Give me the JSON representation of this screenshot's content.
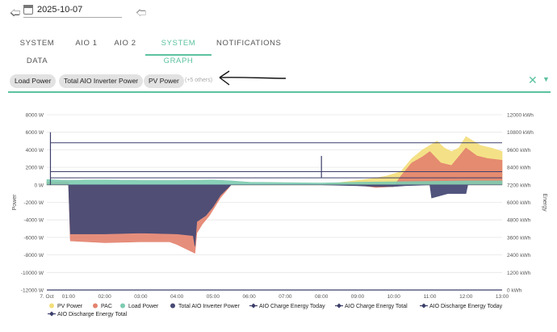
{
  "header": {
    "back_icon": "arrow-left-icon",
    "calendar_icon": "calendar-icon",
    "date": "2025-10-07",
    "forward_icon": "arrow-right-icon"
  },
  "tabs": [
    {
      "label": "SYSTEM DATA",
      "active": false
    },
    {
      "label": "AIO 1",
      "active": false
    },
    {
      "label": "AIO 2",
      "active": false
    },
    {
      "label": "SYSTEM GRAPH",
      "active": true
    },
    {
      "label": "NOTIFICATIONS",
      "active": false
    }
  ],
  "selector": {
    "chips": [
      "Load Power",
      "Total AIO Inverter Power",
      "PV Power"
    ],
    "others_text": "(+5 others)",
    "clear_icon": "close-icon",
    "dropdown_icon": "caret-down-icon",
    "accent_color": "#5cc2a0"
  },
  "chart_data": {
    "type": "area",
    "title": "",
    "ylabel": "Power",
    "y2label": "Energy",
    "ylim": [
      -12000,
      8000
    ],
    "y2lim": [
      0,
      12000
    ],
    "y_ticks": [
      "8000 W",
      "6000 W",
      "4000 W",
      "2000 W",
      "0 W",
      "-2000 W",
      "-4000 W",
      "-6000 W",
      "-8000 W",
      "-10000 W",
      "-12000 W"
    ],
    "y2_ticks": [
      "12000 kWh",
      "10800 kWh",
      "9600 kWh",
      "8400 kWh",
      "7200 kWh",
      "6000 kWh",
      "4800 kWh",
      "3600 kWh",
      "2400 kWh",
      "1200 kWh",
      "0 kWh"
    ],
    "xlim_hours": [
      0.4,
      13
    ],
    "x_ticks": [
      {
        "hour": 0.4,
        "label": "7. Oct"
      },
      {
        "hour": 1,
        "label": "01:00"
      },
      {
        "hour": 2,
        "label": "02:00"
      },
      {
        "hour": 3,
        "label": "03:00"
      },
      {
        "hour": 4,
        "label": "04:00"
      },
      {
        "hour": 5,
        "label": "05:00"
      },
      {
        "hour": 6,
        "label": "06:00"
      },
      {
        "hour": 7,
        "label": "07:00"
      },
      {
        "hour": 8,
        "label": "08:00"
      },
      {
        "hour": 9,
        "label": "09:00"
      },
      {
        "hour": 10,
        "label": "10:00"
      },
      {
        "hour": 11,
        "label": "11:00"
      },
      {
        "hour": 12,
        "label": "12:00"
      },
      {
        "hour": 13,
        "label": "13:00"
      }
    ],
    "series": [
      {
        "name": "PV Power",
        "kind": "area",
        "color": "#f3de7a",
        "points": [
          [
            0.4,
            0
          ],
          [
            6,
            0
          ],
          [
            8,
            0
          ],
          [
            8.3,
            150
          ],
          [
            8.6,
            300
          ],
          [
            9,
            500
          ],
          [
            9.4,
            700
          ],
          [
            9.8,
            1000
          ],
          [
            10.2,
            1500
          ],
          [
            10.5,
            3000
          ],
          [
            10.8,
            4000
          ],
          [
            11,
            4500
          ],
          [
            11.2,
            5000
          ],
          [
            11.4,
            4200
          ],
          [
            11.6,
            3800
          ],
          [
            11.8,
            4200
          ],
          [
            12,
            5500
          ],
          [
            12.2,
            5000
          ],
          [
            12.4,
            4500
          ],
          [
            12.7,
            4200
          ],
          [
            13,
            3800
          ]
        ]
      },
      {
        "name": "PAC",
        "kind": "area",
        "color": "#e3826e",
        "points": [
          [
            0.4,
            300
          ],
          [
            1,
            300
          ],
          [
            1.05,
            -6400
          ],
          [
            2,
            -6600
          ],
          [
            3,
            -6500
          ],
          [
            3.8,
            -6500
          ],
          [
            4,
            -6800
          ],
          [
            4.5,
            -7800
          ],
          [
            4.55,
            -5500
          ],
          [
            4.7,
            -4500
          ],
          [
            4.9,
            -3500
          ],
          [
            5.2,
            -1500
          ],
          [
            5.5,
            0
          ],
          [
            6,
            0
          ],
          [
            9,
            0
          ],
          [
            9.5,
            -300
          ],
          [
            10,
            -200
          ],
          [
            10.2,
            1000
          ],
          [
            10.5,
            2500
          ],
          [
            10.8,
            3200
          ],
          [
            11,
            3800
          ],
          [
            11.3,
            2500
          ],
          [
            11.6,
            2200
          ],
          [
            11.8,
            3200
          ],
          [
            12,
            4200
          ],
          [
            12.3,
            3300
          ],
          [
            12.6,
            3000
          ],
          [
            13,
            2800
          ]
        ]
      },
      {
        "name": "Load Power",
        "kind": "area",
        "color": "#7ccbb0",
        "points": [
          [
            0.4,
            600
          ],
          [
            1,
            500
          ],
          [
            1.5,
            550
          ],
          [
            2,
            550
          ],
          [
            3,
            500
          ],
          [
            4,
            500
          ],
          [
            5,
            550
          ],
          [
            5.5,
            450
          ],
          [
            6,
            300
          ],
          [
            7,
            250
          ],
          [
            8,
            200
          ],
          [
            9,
            300
          ],
          [
            10,
            350
          ],
          [
            11,
            400
          ],
          [
            12,
            450
          ],
          [
            13,
            450
          ]
        ]
      },
      {
        "name": "Total AIO Inverter Power",
        "kind": "area",
        "color": "#484b75",
        "points": [
          [
            0.4,
            0
          ],
          [
            1,
            0
          ],
          [
            1.05,
            -5600
          ],
          [
            2,
            -5600
          ],
          [
            3,
            -5500
          ],
          [
            4,
            -5600
          ],
          [
            4.45,
            -5800
          ],
          [
            4.5,
            -7000
          ],
          [
            4.55,
            -4200
          ],
          [
            4.8,
            -3500
          ],
          [
            5,
            -2500
          ],
          [
            5.2,
            -1200
          ],
          [
            5.5,
            0
          ],
          [
            6,
            0
          ],
          [
            7,
            0
          ],
          [
            8,
            0
          ],
          [
            9,
            -100
          ],
          [
            9.5,
            -200
          ],
          [
            10,
            -200
          ],
          [
            10.3,
            -100
          ],
          [
            11,
            0
          ],
          [
            11.05,
            -1500
          ],
          [
            11.5,
            -1000
          ],
          [
            12,
            -1000
          ],
          [
            12.05,
            0
          ],
          [
            13,
            0
          ]
        ]
      },
      {
        "name": "AIO Charge Energy Today",
        "kind": "line",
        "color": "#3c3f6b",
        "points": []
      },
      {
        "name": "AIO Charge Energy Total",
        "kind": "line",
        "color": "#3c3f6b",
        "points": []
      },
      {
        "name": "AIO Discharge Energy Today",
        "kind": "line",
        "color": "#3c3f6b",
        "points": []
      },
      {
        "name": "AIO Discharge Energy Total",
        "kind": "line",
        "color": "#3c3f6b",
        "points": []
      }
    ],
    "reference_lines": [
      {
        "name": "total-energy-level",
        "value_w": 4800,
        "color": "#3c3f6b"
      },
      {
        "name": "discharge-energy-level",
        "value_w": 1500,
        "color": "#3c3f6b"
      },
      {
        "name": "charge-energy-level",
        "value_w": 800,
        "color": "#3c3f6b"
      }
    ],
    "legend": {
      "position": "bottom-left"
    }
  }
}
